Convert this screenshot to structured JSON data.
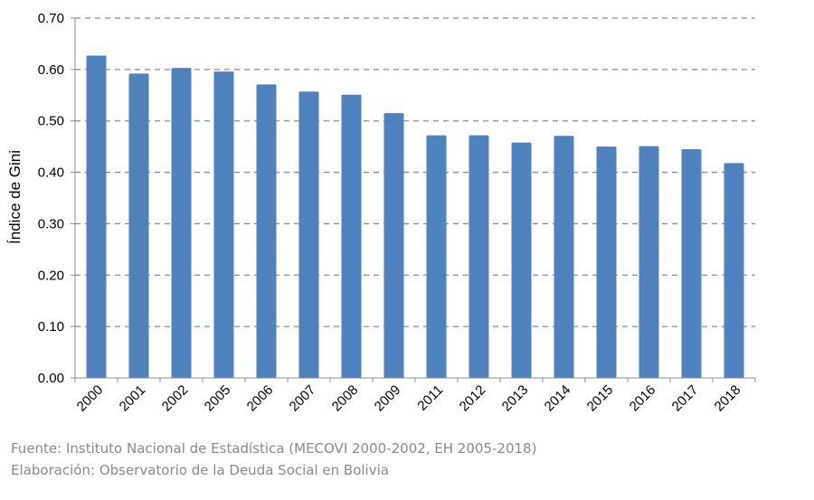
{
  "chart_data": {
    "type": "bar",
    "title": "",
    "xlabel": "",
    "ylabel": "Índice de Gini",
    "ylim": [
      0,
      0.7
    ],
    "yticks": [
      "0.00",
      "0.10",
      "0.20",
      "0.30",
      "0.40",
      "0.50",
      "0.60",
      "0.70"
    ],
    "grid": "horizontal dashed",
    "categories": [
      "2000",
      "2001",
      "2002",
      "2005",
      "2006",
      "2007",
      "2008",
      "2009",
      "2011",
      "2012",
      "2013",
      "2014",
      "2015",
      "2016",
      "2017",
      "2018"
    ],
    "values": [
      0.627,
      0.592,
      0.603,
      0.596,
      0.571,
      0.557,
      0.551,
      0.515,
      0.472,
      0.472,
      0.458,
      0.471,
      0.45,
      0.451,
      0.445,
      0.418
    ],
    "bar_color": "#4f81bd"
  },
  "footer": {
    "source": "Fuente: Instituto Nacional de Estadística (MECOVI 2000-2002, EH 2005-2018)",
    "credit": "Elaboración: Observatorio de la Deuda Social en Bolivia"
  }
}
